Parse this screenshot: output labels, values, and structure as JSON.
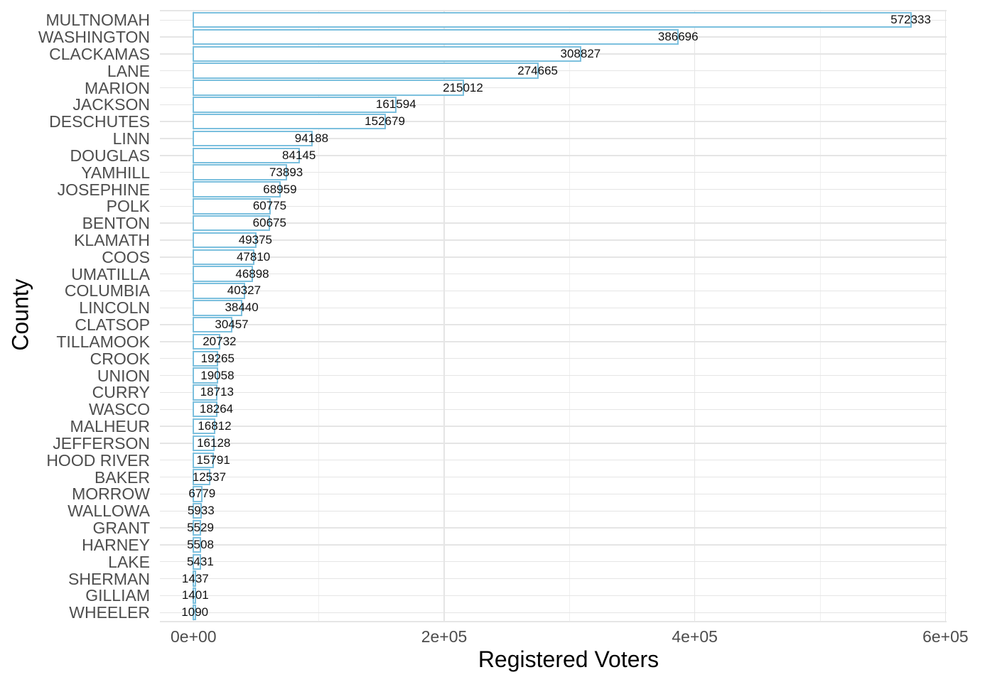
{
  "chart_data": {
    "type": "bar",
    "orientation": "horizontal",
    "title": "",
    "xlabel": "Registered Voters",
    "ylabel": "County",
    "categories": [
      "MULTNOMAH",
      "WASHINGTON",
      "CLACKAMAS",
      "LANE",
      "MARION",
      "JACKSON",
      "DESCHUTES",
      "LINN",
      "DOUGLAS",
      "YAMHILL",
      "JOSEPHINE",
      "POLK",
      "BENTON",
      "KLAMATH",
      "COOS",
      "UMATILLA",
      "COLUMBIA",
      "LINCOLN",
      "CLATSOP",
      "TILLAMOOK",
      "CROOK",
      "UNION",
      "CURRY",
      "WASCO",
      "MALHEUR",
      "JEFFERSON",
      "HOOD RIVER",
      "BAKER",
      "MORROW",
      "WALLOWA",
      "GRANT",
      "HARNEY",
      "LAKE",
      "SHERMAN",
      "GILLIAM",
      "WHEELER"
    ],
    "values": [
      572333,
      386696,
      308827,
      274665,
      215012,
      161594,
      152679,
      94188,
      84145,
      73893,
      68959,
      60775,
      60675,
      49375,
      47810,
      46898,
      40327,
      38440,
      30457,
      20732,
      19265,
      19058,
      18713,
      18264,
      16812,
      16128,
      15791,
      12537,
      6779,
      5933,
      5529,
      5508,
      5431,
      1437,
      1401,
      1090
    ],
    "value_labels_visible": true,
    "x_axis": {
      "ticks": [
        {
          "label": "0e+00",
          "value": 0
        },
        {
          "label": "2e+05",
          "value": 200000
        },
        {
          "label": "4e+05",
          "value": 400000
        },
        {
          "label": "6e+05",
          "value": 600000
        }
      ],
      "minor_tick_values": [
        100000,
        300000,
        500000
      ],
      "lim": [
        0,
        600000
      ]
    },
    "grid": "major-and-minor-vertical, major-horizontal-per-category",
    "legend": false,
    "colors": {
      "background": "#ffffff",
      "bar_fill": "#ffffff",
      "bar_stroke": "#7cc0de",
      "grid_major": "#e5e5e5",
      "grid_minor": "#f0f0f0",
      "panel_edge_line": "#e6e6e6",
      "axis_text": "#4d4d4d",
      "axis_title": "#000000",
      "value_label": "#111111"
    }
  }
}
